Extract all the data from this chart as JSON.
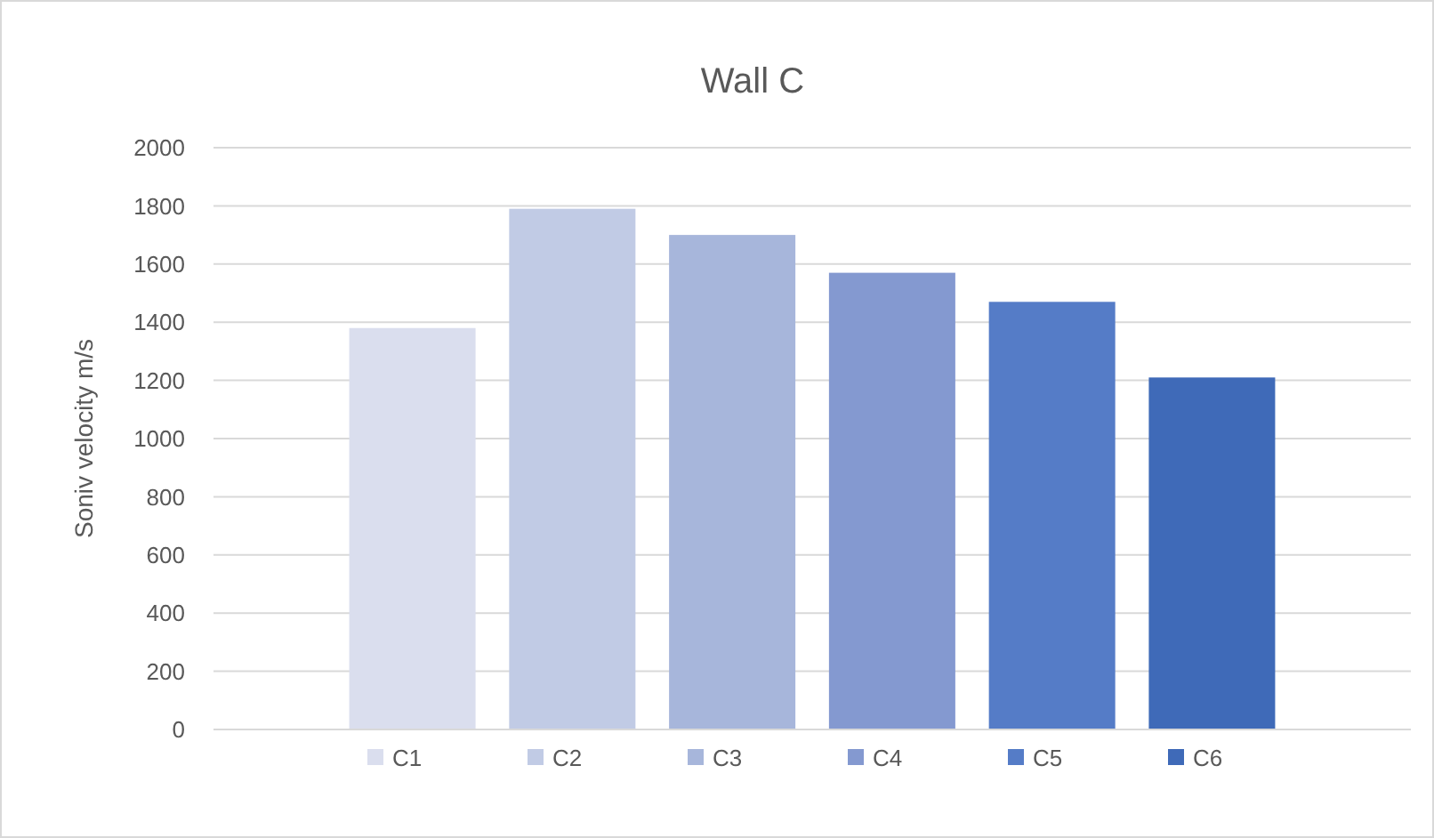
{
  "chart_data": {
    "type": "bar",
    "title": "Wall C",
    "ylabel": "Soniv velocity m/s",
    "categories": [
      null
    ],
    "series": [
      {
        "name": "C1",
        "color": "#dadeee",
        "values": [
          1380
        ]
      },
      {
        "name": "C2",
        "color": "#c1cbe5",
        "values": [
          1790
        ]
      },
      {
        "name": "C3",
        "color": "#a7b6db",
        "values": [
          1700
        ]
      },
      {
        "name": "C4",
        "color": "#8499d0",
        "values": [
          1570
        ]
      },
      {
        "name": "C5",
        "color": "#557cc7",
        "values": [
          1470
        ]
      },
      {
        "name": "C6",
        "color": "#3f6ab8",
        "values": [
          1210
        ]
      }
    ],
    "ylim": [
      0,
      2000
    ],
    "yticks": [
      0,
      200,
      400,
      600,
      800,
      1000,
      1200,
      1400,
      1600,
      1800,
      2000
    ],
    "grid": "y",
    "legend": "bottom"
  }
}
